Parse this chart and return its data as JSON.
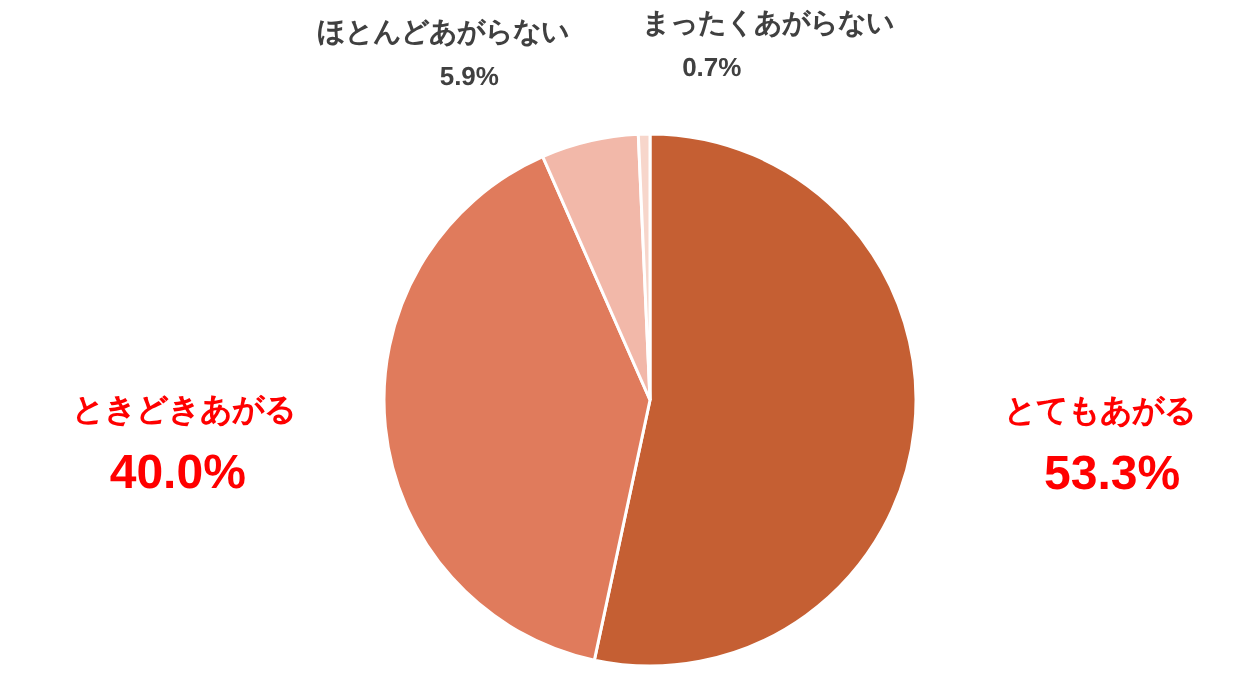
{
  "chart_data": {
    "type": "pie",
    "categories": [
      "とてもあがる",
      "ときどきあがる",
      "ほとんどあがらない",
      "まったくあがらない"
    ],
    "values": [
      53.3,
      40.0,
      5.9,
      0.7
    ],
    "colors": [
      "#c55f33",
      "#e07b5c",
      "#f2b8a9",
      "#f7d6cb"
    ],
    "value_labels": [
      "53.3%",
      "40.0%",
      "5.9%",
      "0.7%"
    ]
  }
}
